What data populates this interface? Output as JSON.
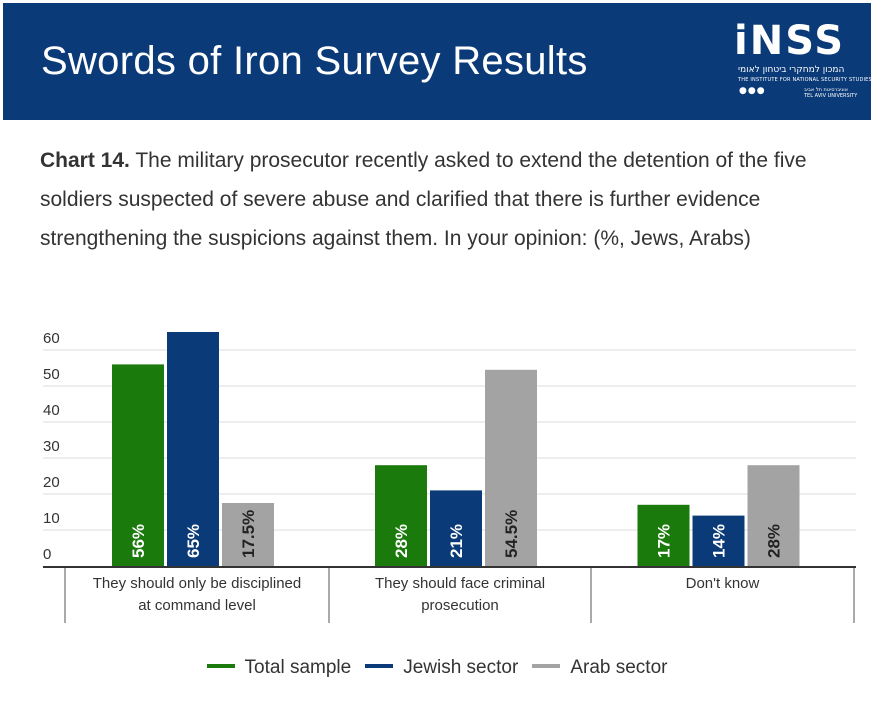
{
  "header": {
    "title": "Swords of Iron Survey Results",
    "logo": {
      "word": "iNSS",
      "hebrew": "המכון למחקרי ביטחון לאומי",
      "english": "THE INSTITUTE FOR NATIONAL SECURITY STUDIES",
      "dots": "●●●",
      "university_heb": "אוניברסיטת תל אביב",
      "university_eng": "TEL AVIV UNIVERSITY"
    }
  },
  "question": {
    "label": "Chart 14.",
    "text": "The military prosecutor recently asked to extend the detention of the five soldiers suspected of severe abuse and clarified that there is further evidence strengthening the suspicions against them. In your opinion: (%, Jews, Arabs)"
  },
  "chart_data": {
    "type": "bar",
    "categories": [
      [
        "They should only be disciplined",
        "at command level"
      ],
      [
        "They should face criminal",
        "prosecution"
      ],
      [
        "Don't know"
      ]
    ],
    "series": [
      {
        "name": "Total sample",
        "color": "#1a7a0c",
        "values": [
          56,
          28,
          17
        ],
        "labels": [
          "56%",
          "28%",
          "17%"
        ]
      },
      {
        "name": "Jewish sector",
        "color": "#0b3a78",
        "values": [
          65,
          21,
          14
        ],
        "labels": [
          "65%",
          "21%",
          "14%"
        ]
      },
      {
        "name": "Arab sector",
        "color": "#a3a3a3",
        "values": [
          17.5,
          54.5,
          28
        ],
        "labels": [
          "17.5%",
          "54.5%",
          "28%"
        ]
      }
    ],
    "yticks": [
      0,
      10,
      20,
      30,
      40,
      50,
      60
    ],
    "ylim": [
      0,
      60
    ],
    "grid": true,
    "legend": "bottom"
  }
}
